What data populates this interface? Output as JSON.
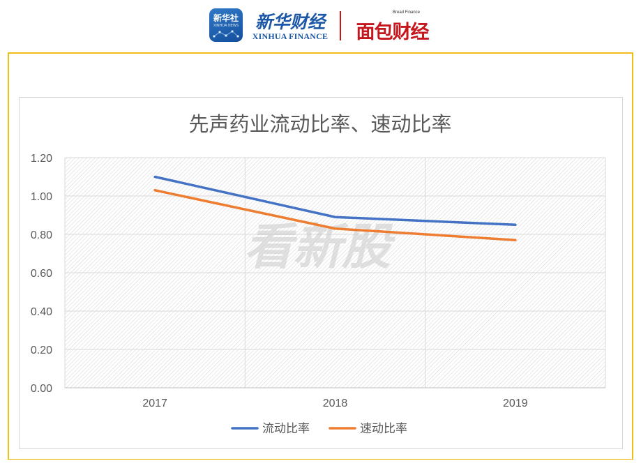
{
  "header": {
    "xinhua_app": {
      "title": "新华社",
      "subtitle": "XINHUA NEWS"
    },
    "xinhua_finance": {
      "name_cn": "新华财经",
      "name_en": "XINHUA FINANCE"
    },
    "bread_finance": {
      "small_text": "Bread Finance",
      "name_cn": "面包财经"
    },
    "colors": {
      "xinhua_blue": "#1b57a6",
      "bread_red": "#c4161c",
      "frame_gold": "#f0bd1d"
    }
  },
  "watermark": "看新股",
  "chart_data": {
    "type": "line",
    "title": "先声药业流动比率、速动比率",
    "categories": [
      "2017",
      "2018",
      "2019"
    ],
    "series": [
      {
        "name": "流动比率",
        "values": [
          1.1,
          0.89,
          0.85
        ],
        "color": "#4472c4"
      },
      {
        "name": "速动比率",
        "values": [
          1.03,
          0.83,
          0.77
        ],
        "color": "#ed7d31"
      }
    ],
    "ylim": [
      0,
      1.2
    ],
    "yticks": [
      "1.20",
      "1.00",
      "0.80",
      "0.60",
      "0.40",
      "0.20",
      "0.00"
    ],
    "ytick_values": [
      1.2,
      1.0,
      0.8,
      0.6,
      0.4,
      0.2,
      0.0
    ],
    "grid": true,
    "legend": "bottom"
  }
}
